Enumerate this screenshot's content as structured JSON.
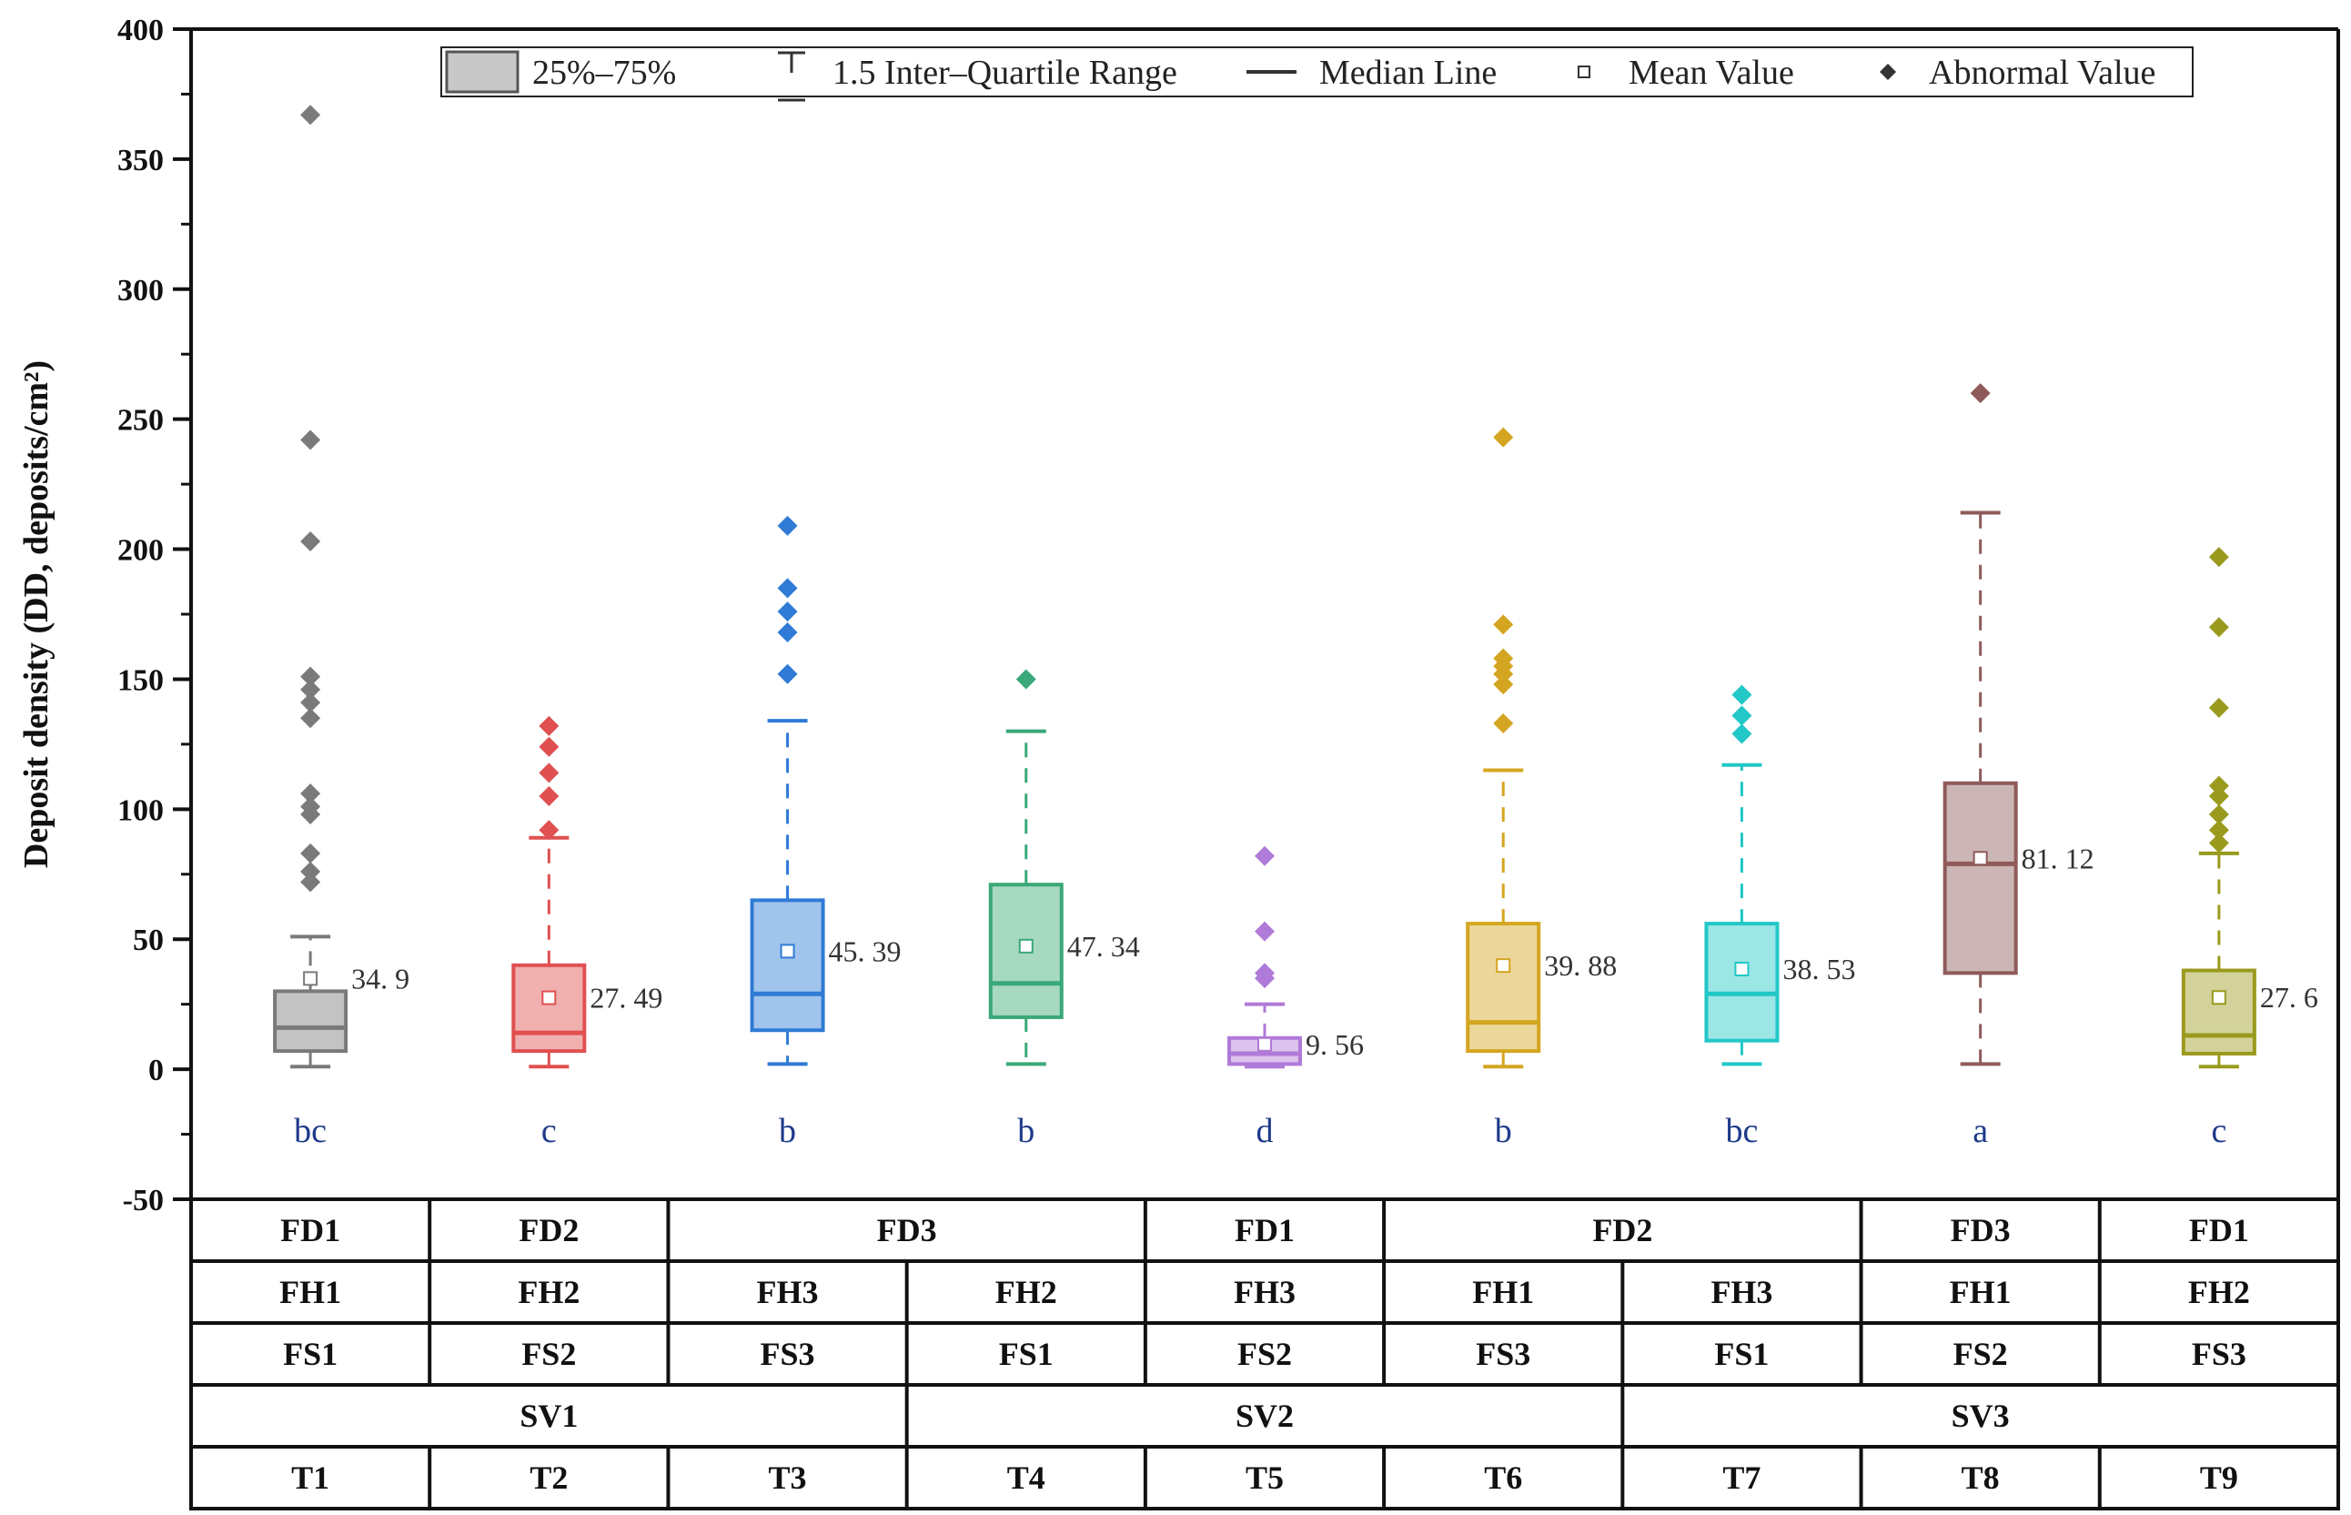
{
  "chart_data": {
    "type": "box",
    "ylabel": "Deposit density (DD, deposits/cm²)",
    "ylim": [
      -50,
      400
    ],
    "yticks": [
      -50,
      0,
      50,
      100,
      150,
      200,
      250,
      300,
      350,
      400
    ],
    "legend": {
      "position": "top",
      "entries": [
        {
          "key": "box",
          "label": "25%–75%"
        },
        {
          "key": "whisker",
          "label": "1.5 Inter–Quartile Range"
        },
        {
          "key": "median",
          "label": "Median Line"
        },
        {
          "key": "mean",
          "label": "Mean Value"
        },
        {
          "key": "outlier",
          "label": "Abnormal Value"
        }
      ]
    },
    "series": [
      {
        "name": "T1",
        "color": "#7a7a7a",
        "q1": 7,
        "median": 16,
        "q3": 30,
        "whisker_low": 1,
        "whisker_high": 51,
        "mean": 34.9,
        "mean_label": "34. 9",
        "outliers": [
          72,
          76,
          83,
          98,
          101,
          106,
          135,
          141,
          146,
          151,
          203,
          242,
          367
        ],
        "letter": "bc"
      },
      {
        "name": "T2",
        "color": "#e05050",
        "q1": 7,
        "median": 14,
        "q3": 40,
        "whisker_low": 1,
        "whisker_high": 89,
        "mean": 27.49,
        "mean_label": "27. 49",
        "outliers": [
          92,
          105,
          114,
          124,
          132
        ],
        "letter": "c"
      },
      {
        "name": "T3",
        "color": "#2f7bd6",
        "q1": 15,
        "median": 29,
        "q3": 65,
        "whisker_low": 2,
        "whisker_high": 134,
        "mean": 45.39,
        "mean_label": "45. 39",
        "outliers": [
          152,
          168,
          176,
          185,
          209
        ],
        "letter": "b"
      },
      {
        "name": "T4",
        "color": "#3aa878",
        "q1": 20,
        "median": 33,
        "q3": 71,
        "whisker_low": 2,
        "whisker_high": 130,
        "mean": 47.34,
        "mean_label": "47. 34",
        "outliers": [
          150
        ],
        "letter": "b"
      },
      {
        "name": "T5",
        "color": "#b07ad8",
        "q1": 2,
        "median": 6,
        "q3": 12,
        "whisker_low": 1,
        "whisker_high": 25,
        "mean": 9.56,
        "mean_label": "9. 56",
        "outliers": [
          35,
          37,
          53,
          82
        ],
        "letter": "d"
      },
      {
        "name": "T6",
        "color": "#d4a520",
        "q1": 7,
        "median": 18,
        "q3": 56,
        "whisker_low": 1,
        "whisker_high": 115,
        "mean": 39.88,
        "mean_label": "39. 88",
        "outliers": [
          133,
          148,
          152,
          155,
          158,
          171,
          243
        ],
        "letter": "b"
      },
      {
        "name": "T7",
        "color": "#22c7c7",
        "q1": 11,
        "median": 29,
        "q3": 56,
        "whisker_low": 2,
        "whisker_high": 117,
        "mean": 38.53,
        "mean_label": "38. 53",
        "outliers": [
          129,
          136,
          144
        ],
        "letter": "bc"
      },
      {
        "name": "T8",
        "color": "#8e5a5a",
        "q1": 37,
        "median": 79,
        "q3": 110,
        "whisker_low": 2,
        "whisker_high": 214,
        "mean": 81.12,
        "mean_label": "81. 12",
        "outliers": [
          260
        ],
        "letter": "a"
      },
      {
        "name": "T9",
        "color": "#9a9a1e",
        "q1": 6,
        "median": 13,
        "q3": 38,
        "whisker_low": 1,
        "whisker_high": 83,
        "mean": 27.6,
        "mean_label": "27. 6",
        "outliers": [
          87,
          92,
          98,
          105,
          109,
          139,
          170,
          197
        ],
        "letter": "c"
      }
    ],
    "table": {
      "rows": [
        [
          {
            "text": "FD1",
            "span": 1
          },
          {
            "text": "FD2",
            "span": 1
          },
          {
            "text": "FD3",
            "span": 2
          },
          {
            "text": "FD1",
            "span": 1
          },
          {
            "text": "FD2",
            "span": 2
          },
          {
            "text": "FD3",
            "span": 1
          },
          {
            "text": "FD1",
            "span": 1
          }
        ],
        [
          {
            "text": "FH1",
            "span": 1
          },
          {
            "text": "FH2",
            "span": 1
          },
          {
            "text": "FH3",
            "span": 1
          },
          {
            "text": "FH2",
            "span": 1
          },
          {
            "text": "FH3",
            "span": 1
          },
          {
            "text": "FH1",
            "span": 1
          },
          {
            "text": "FH3",
            "span": 1
          },
          {
            "text": "FH1",
            "span": 1
          },
          {
            "text": "FH2",
            "span": 1
          }
        ],
        [
          {
            "text": "FS1",
            "span": 1
          },
          {
            "text": "FS2",
            "span": 1
          },
          {
            "text": "FS3",
            "span": 1
          },
          {
            "text": "FS1",
            "span": 1
          },
          {
            "text": "FS2",
            "span": 1
          },
          {
            "text": "FS3",
            "span": 1
          },
          {
            "text": "FS1",
            "span": 1
          },
          {
            "text": "FS2",
            "span": 1
          },
          {
            "text": "FS3",
            "span": 1
          }
        ],
        [
          {
            "text": "SV1",
            "span": 3
          },
          {
            "text": "SV2",
            "span": 3
          },
          {
            "text": "SV3",
            "span": 3
          }
        ],
        [
          {
            "text": "T1",
            "span": 1
          },
          {
            "text": "T2",
            "span": 1
          },
          {
            "text": "T3",
            "span": 1
          },
          {
            "text": "T4",
            "span": 1
          },
          {
            "text": "T5",
            "span": 1
          },
          {
            "text": "T6",
            "span": 1
          },
          {
            "text": "T7",
            "span": 1
          },
          {
            "text": "T8",
            "span": 1
          },
          {
            "text": "T9",
            "span": 1
          }
        ]
      ]
    }
  }
}
